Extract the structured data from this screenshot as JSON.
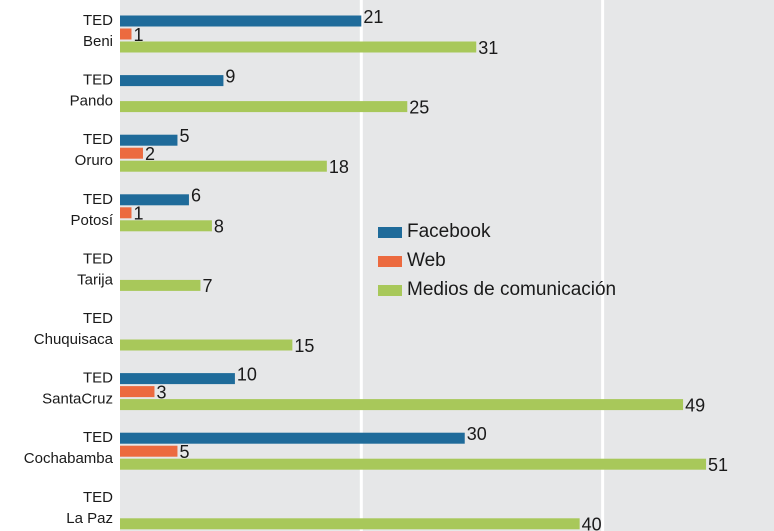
{
  "chart_data": {
    "type": "bar",
    "categories": [
      [
        "TED",
        "Beni"
      ],
      [
        "TED",
        "Pando"
      ],
      [
        "TED",
        "Oruro"
      ],
      [
        "TED",
        "Potosí"
      ],
      [
        "TED",
        "Tarija"
      ],
      [
        "TED",
        "Chuquisaca"
      ],
      [
        "TED",
        "SantaCruz"
      ],
      [
        "TED",
        "Cochabamba"
      ],
      [
        "TED",
        "La Paz"
      ]
    ],
    "series": [
      {
        "name": "Facebook",
        "color": "#1f6b9a",
        "values": [
          21,
          9,
          5,
          6,
          null,
          null,
          10,
          30,
          null
        ]
      },
      {
        "name": "Web",
        "color": "#ec6a3f",
        "values": [
          1,
          null,
          2,
          1,
          null,
          null,
          3,
          5,
          null
        ]
      },
      {
        "name": "Medios de comunicación",
        "color": "#a8c85a",
        "values": [
          31,
          25,
          18,
          8,
          7,
          15,
          49,
          51,
          40
        ]
      }
    ],
    "xlim": [
      0,
      57
    ],
    "xticks": [
      21,
      42
    ],
    "grid": true,
    "orientation": "horizontal"
  }
}
